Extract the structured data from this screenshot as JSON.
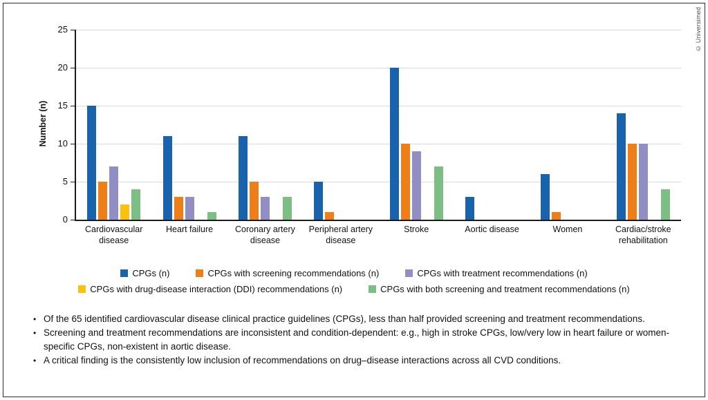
{
  "copyright": "© Universimed",
  "chart_data": {
    "type": "bar",
    "title": "",
    "xlabel": "",
    "ylabel": "Number (n)",
    "ylim": [
      0,
      25
    ],
    "yticks": [
      0,
      5,
      10,
      15,
      20,
      25
    ],
    "grid": true,
    "legend_position": "bottom",
    "categories": [
      "Cardiovascular disease",
      "Heart failure",
      "Coronary artery disease",
      "Peripheral artery disease",
      "Stroke",
      "Aortic disease",
      "Women",
      "Cardiac/stroke rehabilitation"
    ],
    "series": [
      {
        "name": "CPGs (n)",
        "color": "#1963ac",
        "values": [
          15,
          11,
          11,
          5,
          20,
          3,
          6,
          14
        ]
      },
      {
        "name": "CPGs with screening recommendations (n)",
        "color": "#ee7f18",
        "values": [
          5,
          3,
          5,
          1,
          10,
          0,
          1,
          10
        ]
      },
      {
        "name": "CPGs with treatment recommendations (n)",
        "color": "#918ec4",
        "values": [
          7,
          3,
          3,
          0,
          9,
          0,
          0,
          10
        ]
      },
      {
        "name": "CPGs with drug-disease interaction (DDI) recommendations (n)",
        "color": "#fdc10d",
        "values": [
          2,
          0,
          0,
          0,
          0,
          0,
          0,
          0
        ]
      },
      {
        "name": "CPGs with both screening and treatment recommendations (n)",
        "color": "#7cbe83",
        "values": [
          4,
          1,
          3,
          0,
          7,
          0,
          0,
          4
        ]
      }
    ],
    "legend_rows": [
      [
        0,
        1,
        2
      ],
      [
        3,
        4
      ]
    ]
  },
  "notes": [
    "Of the 65 identified cardiovascular disease clinical practice guidelines (CPGs), less than half provided screening and treatment recommendations.",
    "Screening and treatment recommendations are inconsistent and condition-dependent: e.g., high in stroke CPGs, low/very low in heart failure or women-specific CPGs, non-existent in aortic disease.",
    "A critical finding is the consistently low inclusion of recommendations on drug–disease interactions across all CVD conditions."
  ]
}
